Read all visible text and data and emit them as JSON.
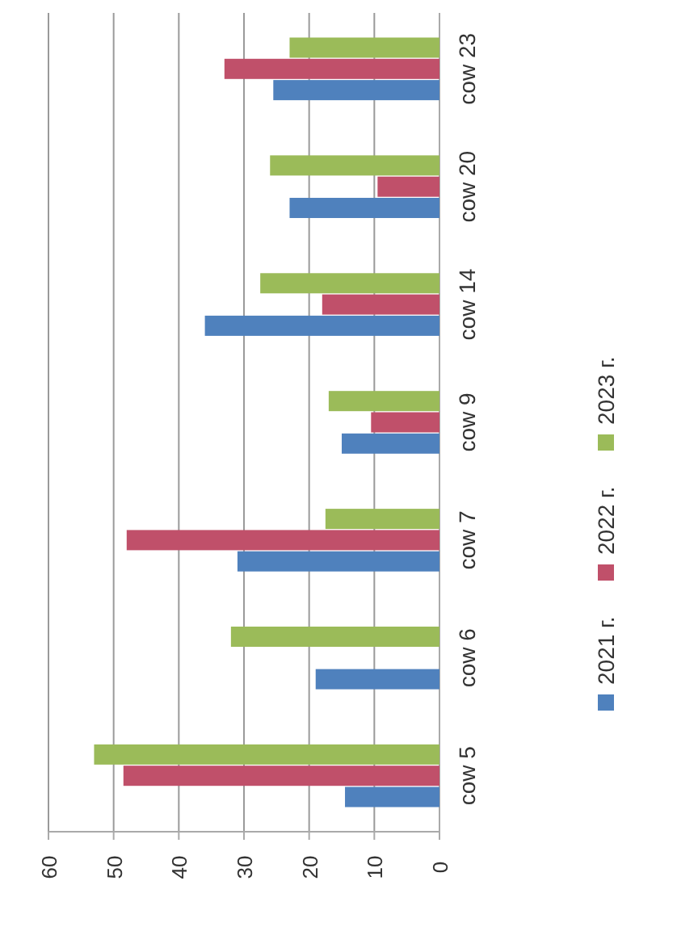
{
  "chart_data": {
    "type": "bar",
    "orientation": "horizontal",
    "categories": [
      "cow 23",
      "cow 20",
      "cow 14",
      "cow 9",
      "cow 7",
      "cow 6",
      "cow 5"
    ],
    "series": [
      {
        "name": "2021 г.",
        "color": "#4f81bd",
        "values": [
          25.5,
          23,
          36,
          15,
          31,
          19,
          14.5
        ]
      },
      {
        "name": "2022 г.",
        "color": "#c0506a",
        "values": [
          33,
          9.5,
          18,
          10.5,
          48,
          null,
          48.5
        ]
      },
      {
        "name": "2023 г.",
        "color": "#9bbb59",
        "values": [
          23,
          26,
          27.5,
          17,
          17.5,
          32,
          53
        ]
      }
    ],
    "xlim": [
      60,
      0
    ],
    "xticks": [
      0,
      10,
      20,
      30,
      40,
      50,
      60
    ],
    "grid": "x",
    "legend": "right"
  }
}
